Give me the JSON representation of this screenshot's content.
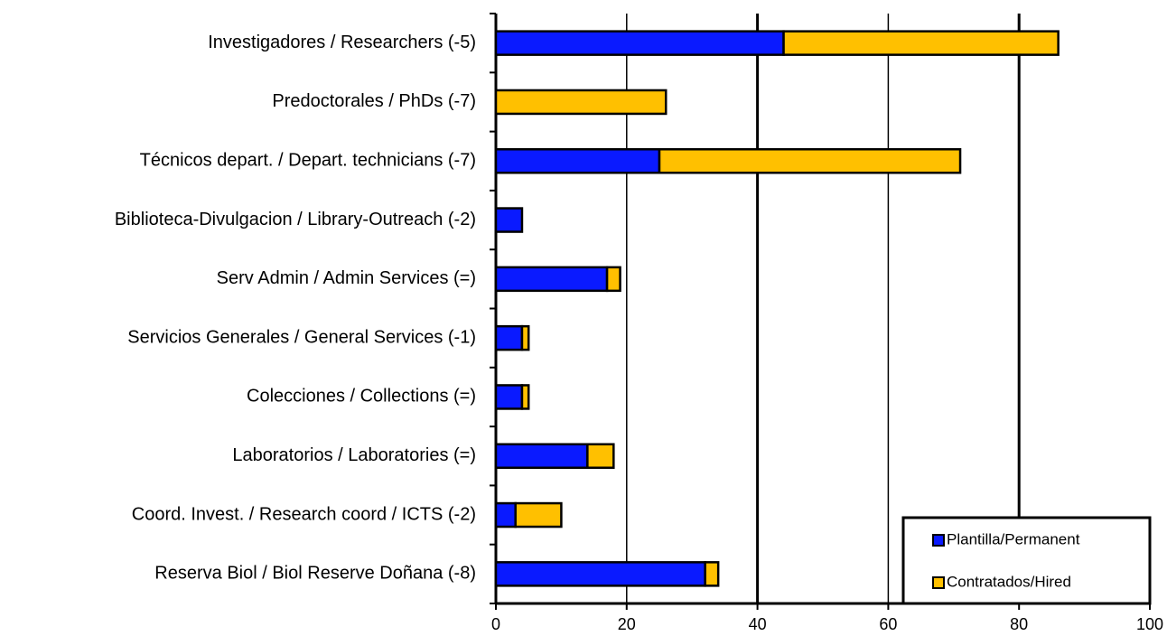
{
  "chart_data": {
    "type": "barh_stacked",
    "categories": [
      "Investigadores / Researchers (-5)",
      "Predoctorales / PhDs (-7)",
      "Técnicos depart. / Depart. technicians (-7)",
      "Biblioteca-Divulgacion / Library-Outreach (-2)",
      "Serv Admin / Admin Services (=)",
      "Servicios Generales / General Services (-1)",
      "Colecciones / Collections (=)",
      "Laboratorios / Laboratories (=)",
      "Coord. Invest. / Research coord / ICTS (-2)",
      "Reserva Biol / Biol Reserve Doñana (-8)"
    ],
    "series": [
      {
        "name": "Plantilla/Permanent",
        "color": "#0a1aff",
        "values": [
          44,
          0,
          25,
          4,
          17,
          4,
          4,
          14,
          3,
          32
        ]
      },
      {
        "name": "Contratados/Hired",
        "color": "#ffc000",
        "values": [
          42,
          26,
          46,
          0,
          2,
          1,
          1,
          4,
          7,
          2
        ]
      }
    ],
    "xlim": [
      0,
      100
    ],
    "xticks": [
      0,
      20,
      40,
      60,
      80,
      100
    ],
    "grid": true,
    "legend": "lower right"
  }
}
